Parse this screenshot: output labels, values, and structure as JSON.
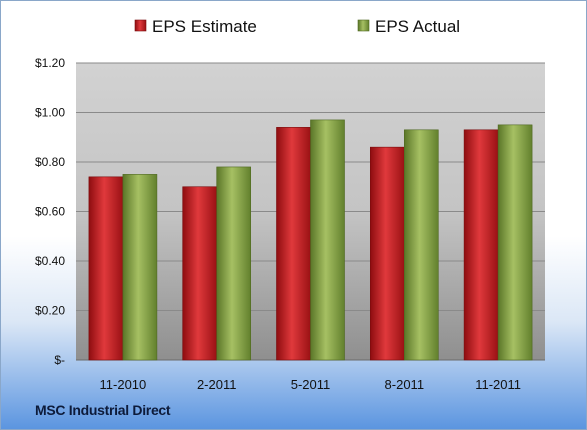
{
  "chart_data": {
    "type": "bar",
    "categories": [
      "11-2010",
      "2-2011",
      "5-2011",
      "8-2011",
      "11-2011"
    ],
    "series": [
      {
        "name": "EPS Estimate",
        "values": [
          0.74,
          0.7,
          0.94,
          0.86,
          0.93
        ]
      },
      {
        "name": "EPS Actual",
        "values": [
          0.75,
          0.78,
          0.97,
          0.93,
          0.95
        ]
      }
    ],
    "ylim": [
      0,
      1.2
    ],
    "yticks": [
      {
        "value": 0,
        "label": "$-"
      },
      {
        "value": 0.2,
        "label": "$0.20"
      },
      {
        "value": 0.4,
        "label": "$0.40"
      },
      {
        "value": 0.6,
        "label": "$0.60"
      },
      {
        "value": 0.8,
        "label": "$0.80"
      },
      {
        "value": 1.0,
        "label": "$1.00"
      },
      {
        "value": 1.2,
        "label": "$1.20"
      }
    ],
    "grid": true,
    "legend": "top"
  },
  "colors": {
    "estimate": "#c0171c",
    "actual": "#7a9a3a"
  },
  "company_label": "MSC Industrial Direct"
}
